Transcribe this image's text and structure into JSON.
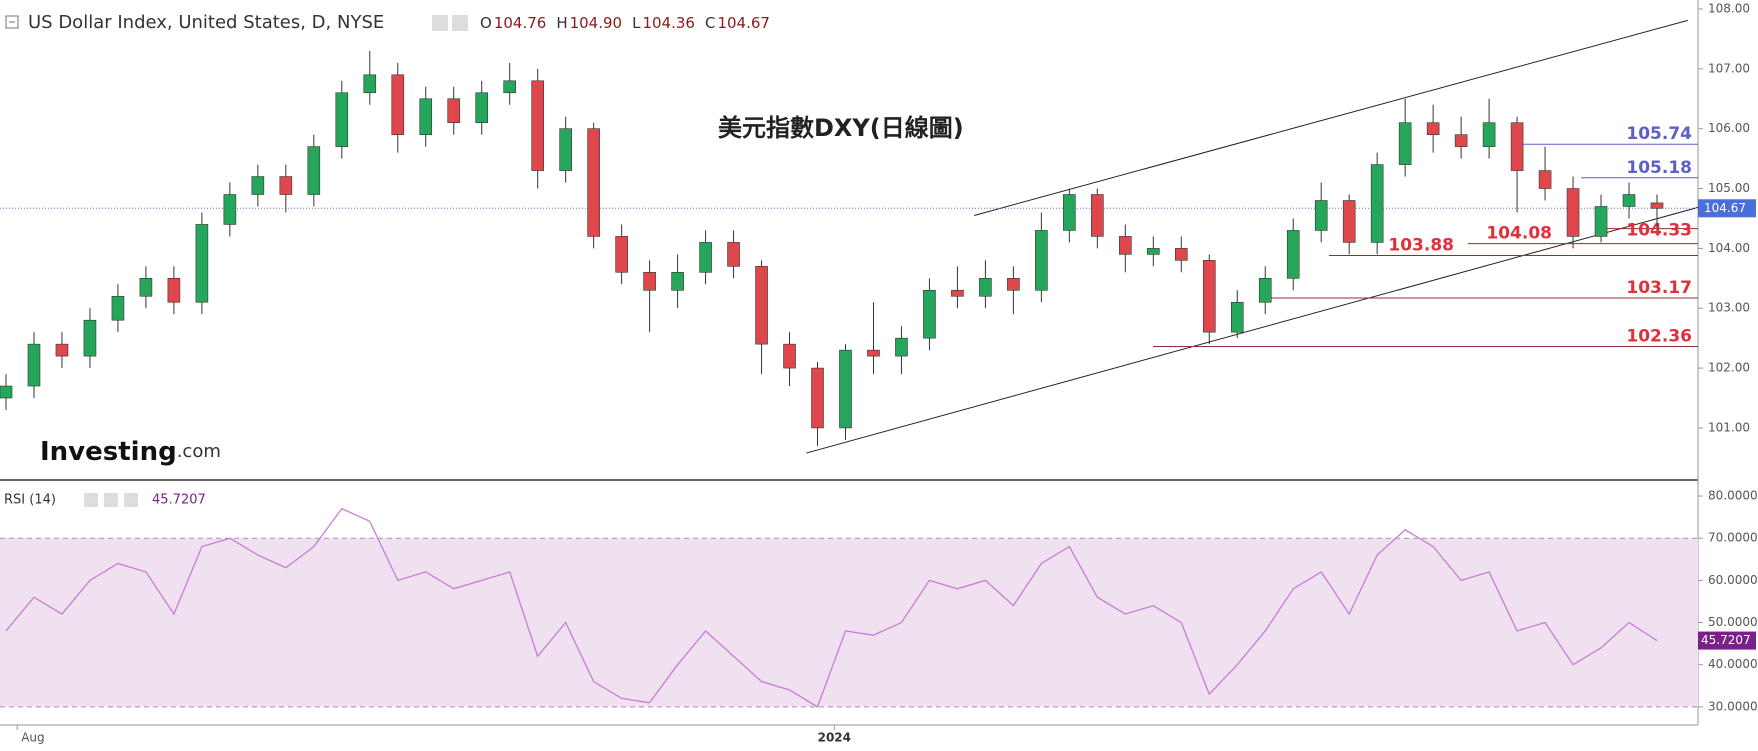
{
  "header": {
    "title": "US Dollar Index, United States, D, NYSE",
    "ohlc": [
      {
        "key": "O",
        "value": "104.76"
      },
      {
        "key": "H",
        "value": "104.90"
      },
      {
        "key": "L",
        "value": "104.36"
      },
      {
        "key": "C",
        "value": "104.67"
      }
    ]
  },
  "watermark": {
    "brand": "Investing",
    "suffix": ".com"
  },
  "chart_data": [
    {
      "type": "candlestick",
      "annotation": "美元指數DXY(日線圖)",
      "up_color": "#26a65b",
      "down_color": "#e0474c",
      "open": [
        101.5,
        101.7,
        102.4,
        102.2,
        102.8,
        103.2,
        103.5,
        103.1,
        104.4,
        104.9,
        105.2,
        104.9,
        105.7,
        106.6,
        106.9,
        105.9,
        106.5,
        106.1,
        106.6,
        106.8,
        105.3,
        106.0,
        104.2,
        103.6,
        103.3,
        103.6,
        104.1,
        103.7,
        102.4,
        102.0,
        101.0,
        102.3,
        102.2,
        102.5,
        103.3,
        103.2,
        103.5,
        103.3,
        104.3,
        104.9,
        104.2,
        103.9,
        104.0,
        103.8,
        102.6,
        103.1,
        103.5,
        104.3,
        104.8,
        104.1,
        105.4,
        106.1,
        105.9,
        105.7,
        106.1,
        105.3,
        105.0,
        104.2,
        104.7,
        104.76
      ],
      "high": [
        101.9,
        102.6,
        102.6,
        103.0,
        103.4,
        103.7,
        103.7,
        104.6,
        105.1,
        105.4,
        105.4,
        105.9,
        106.8,
        107.3,
        107.1,
        106.7,
        106.7,
        106.8,
        107.1,
        107.0,
        106.2,
        106.1,
        104.4,
        103.8,
        103.9,
        104.3,
        104.3,
        103.8,
        102.6,
        102.1,
        102.4,
        103.1,
        102.7,
        103.5,
        103.7,
        103.8,
        103.7,
        104.6,
        105.0,
        105.0,
        104.4,
        104.2,
        104.2,
        103.9,
        103.3,
        103.7,
        104.5,
        105.1,
        104.9,
        105.6,
        106.5,
        106.4,
        106.2,
        106.5,
        106.2,
        105.7,
        105.2,
        104.9,
        105.1,
        104.9
      ],
      "low": [
        101.3,
        101.5,
        102.0,
        102.0,
        102.6,
        103.0,
        102.9,
        102.9,
        104.2,
        104.7,
        104.6,
        104.7,
        105.5,
        106.4,
        105.6,
        105.7,
        105.9,
        105.9,
        106.4,
        105.0,
        105.1,
        104.0,
        103.4,
        102.6,
        103.0,
        103.4,
        103.5,
        101.9,
        101.7,
        100.7,
        100.8,
        101.9,
        101.9,
        102.3,
        103.0,
        103.0,
        102.9,
        103.1,
        104.1,
        104.0,
        103.6,
        103.7,
        103.6,
        102.4,
        102.5,
        102.9,
        103.3,
        104.1,
        103.9,
        103.9,
        105.2,
        105.6,
        105.5,
        105.5,
        104.6,
        104.8,
        104.0,
        104.1,
        104.5,
        104.36
      ],
      "close": [
        101.7,
        102.4,
        102.2,
        102.8,
        103.2,
        103.5,
        103.1,
        104.4,
        104.9,
        105.2,
        104.9,
        105.7,
        106.6,
        106.9,
        105.9,
        106.5,
        106.1,
        106.6,
        106.8,
        105.3,
        106.0,
        104.2,
        103.6,
        103.3,
        103.6,
        104.1,
        103.7,
        102.4,
        102.0,
        101.0,
        102.3,
        102.2,
        102.5,
        103.3,
        103.2,
        103.5,
        103.3,
        104.3,
        104.9,
        104.2,
        103.9,
        104.0,
        103.8,
        102.6,
        103.1,
        103.5,
        104.3,
        104.8,
        104.1,
        105.4,
        106.1,
        105.9,
        105.7,
        106.1,
        105.3,
        105.0,
        104.2,
        104.7,
        104.9,
        104.67
      ],
      "last_color": "#4a6fd8",
      "ylim": [
        100.13,
        108.15
      ],
      "yticks": [
        {
          "value": 101,
          "label": "101.00"
        },
        {
          "value": 102,
          "label": "102.00"
        },
        {
          "value": 103,
          "label": "103.00"
        },
        {
          "value": 104,
          "label": "104.00"
        },
        {
          "value": 105,
          "label": "105.00"
        },
        {
          "value": 106,
          "label": "106.00"
        },
        {
          "value": 107,
          "label": "107.00"
        },
        {
          "value": 108,
          "label": "108.00"
        }
      ],
      "levels": [
        {
          "value": 105.74,
          "color": "#5b5fc7"
        },
        {
          "value": 105.18,
          "color": "#5b5fc7"
        },
        {
          "value": 104.33,
          "color": "#e0303a"
        },
        {
          "value": 104.08,
          "color": "#e0303a"
        },
        {
          "value": 103.88,
          "color": "#e0303a"
        },
        {
          "value": 103.17,
          "color": "#e0303a"
        },
        {
          "value": 102.36,
          "color": "#e0303a"
        }
      ],
      "channel": [
        {
          "x": [
            34.6,
            60.1
          ],
          "y": [
            104.55,
            107.81
          ]
        },
        {
          "x": [
            28.6,
            60.5
          ],
          "y": [
            100.58,
            104.69
          ]
        }
      ],
      "xticks": [
        {
          "value": 0.4,
          "label": "Aug"
        },
        {
          "value": 29.6,
          "label": "2024"
        }
      ]
    },
    {
      "type": "line",
      "title": "RSI (14)",
      "color": "#c77dd6",
      "last_color": "#7b1f8a",
      "band_color": "#f0e1f0",
      "bands": [
        30,
        70
      ],
      "values": [
        48,
        56,
        52,
        60,
        64,
        62,
        52,
        68,
        70,
        66,
        63,
        68,
        77,
        74,
        60,
        62,
        58,
        60,
        62,
        42,
        50,
        36,
        32,
        31,
        40,
        48,
        42,
        36,
        34,
        30,
        48,
        47,
        50,
        60,
        58,
        60,
        54,
        64,
        68,
        56,
        52,
        54,
        50,
        33,
        40,
        48,
        58,
        62,
        52,
        66,
        72,
        68,
        60,
        62,
        48,
        50,
        40,
        44,
        50,
        45.7207
      ],
      "ylim": [
        25.7,
        83.8
      ],
      "yticks": [
        {
          "value": 30,
          "label": "30.0000"
        },
        {
          "value": 40,
          "label": "40.0000"
        },
        {
          "value": 50,
          "label": "50.0000"
        },
        {
          "value": 60,
          "label": "60.0000"
        },
        {
          "value": 70,
          "label": "70.0000"
        },
        {
          "value": 80,
          "label": "80.0000"
        }
      ]
    }
  ]
}
